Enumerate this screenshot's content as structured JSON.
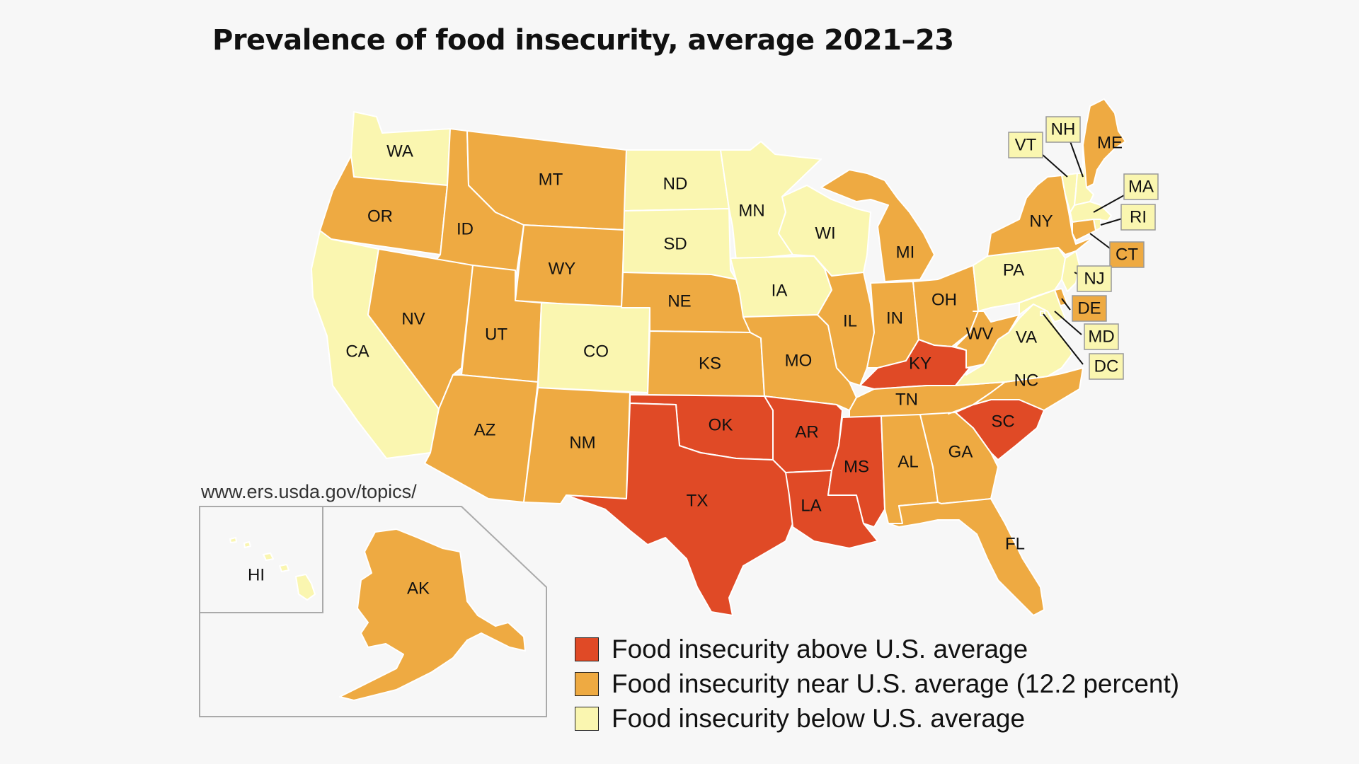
{
  "title": "Prevalence of food insecurity, average 2021–23",
  "source": "www.ers.usda.gov/topics/",
  "colors": {
    "above": "#e04a26",
    "near": "#eeaa42",
    "below": "#faf6b0"
  },
  "legend": [
    {
      "category": "above",
      "label": "Food insecurity above U.S. average"
    },
    {
      "category": "near",
      "label": "Food insecurity near U.S. average (12.2 percent)"
    },
    {
      "category": "below",
      "label": "Food insecurity below U.S. average"
    }
  ],
  "states": {
    "WA": "below",
    "OR": "near",
    "CA": "below",
    "ID": "near",
    "NV": "near",
    "MT": "near",
    "WY": "near",
    "UT": "near",
    "AZ": "near",
    "CO": "below",
    "NM": "near",
    "ND": "below",
    "SD": "below",
    "NE": "near",
    "KS": "near",
    "OK": "above",
    "TX": "above",
    "MN": "below",
    "IA": "below",
    "MO": "near",
    "AR": "above",
    "LA": "above",
    "WI": "below",
    "IL": "near",
    "MI": "near",
    "IN": "near",
    "OH": "near",
    "KY": "above",
    "TN": "near",
    "MS": "above",
    "AL": "near",
    "GA": "near",
    "FL": "near",
    "SC": "above",
    "NC": "near",
    "VA": "below",
    "WV": "near",
    "PA": "below",
    "NY": "near",
    "ME": "near",
    "VT": "below",
    "NH": "below",
    "MA": "below",
    "RI": "below",
    "CT": "near",
    "NJ": "below",
    "DE": "near",
    "MD": "below",
    "DC": "below",
    "AK": "near",
    "HI": "below"
  }
}
